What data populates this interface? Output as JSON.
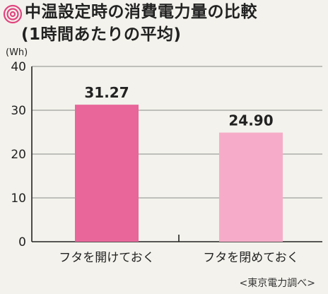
{
  "title": {
    "line1": "中温設定時の消費電力量の比較",
    "line2": "(1時間あたりの平均)"
  },
  "source_note": "<東京電力調べ>",
  "icon": "spiral-target-icon",
  "chart_data": {
    "type": "bar",
    "title": "中温設定時の消費電力量の比較 (1時間あたりの平均)",
    "ylabel": "(Wh)",
    "xlabel": "",
    "ylim": [
      0,
      40
    ],
    "yticks": [
      0,
      10,
      20,
      30,
      40
    ],
    "grid": true,
    "categories": [
      "フタを開けておく",
      "フタを閉めておく"
    ],
    "values": [
      31.27,
      24.9
    ],
    "value_labels": [
      "31.27",
      "24.90"
    ],
    "colors": [
      "#e8669a",
      "#f6acc8"
    ],
    "accent_color": "#e0457f"
  }
}
